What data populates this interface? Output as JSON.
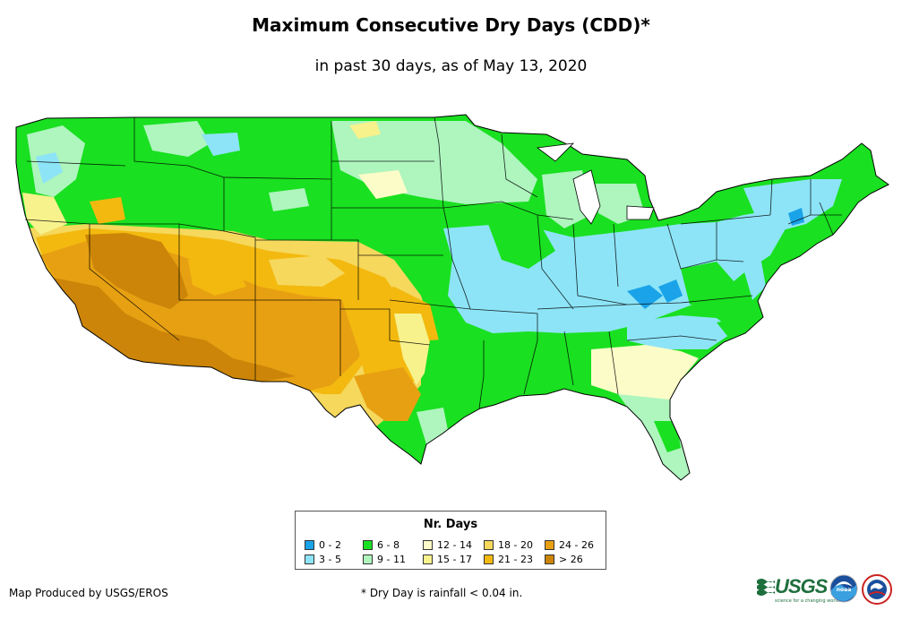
{
  "title": "Maximum Consecutive Dry Days (CDD)*",
  "subtitle": "in past 30 days, as of May 13, 2020",
  "legend": {
    "title": "Nr. Days",
    "items": [
      {
        "label": "0 - 2",
        "color": "#1aa3e8"
      },
      {
        "label": "3 - 5",
        "color": "#8de4f7"
      },
      {
        "label": "6 - 8",
        "color": "#19e020"
      },
      {
        "label": "9 - 11",
        "color": "#aef5be"
      },
      {
        "label": "12 - 14",
        "color": "#fcfcc8"
      },
      {
        "label": "15 - 17",
        "color": "#f7f28c"
      },
      {
        "label": "18 - 20",
        "color": "#f5d85c"
      },
      {
        "label": "21 - 23",
        "color": "#f3b90f"
      },
      {
        "label": "24 - 26",
        "color": "#e7a012"
      },
      {
        "label": "> 26",
        "color": "#cc8508"
      }
    ]
  },
  "credit": "Map Produced by USGS/EROS",
  "footnote": "* Dry Day is rainfall < 0.04 in.",
  "logos": {
    "usgs": "USGS",
    "usgs_tagline": "science for a changing world",
    "noaa": "noaa"
  }
}
